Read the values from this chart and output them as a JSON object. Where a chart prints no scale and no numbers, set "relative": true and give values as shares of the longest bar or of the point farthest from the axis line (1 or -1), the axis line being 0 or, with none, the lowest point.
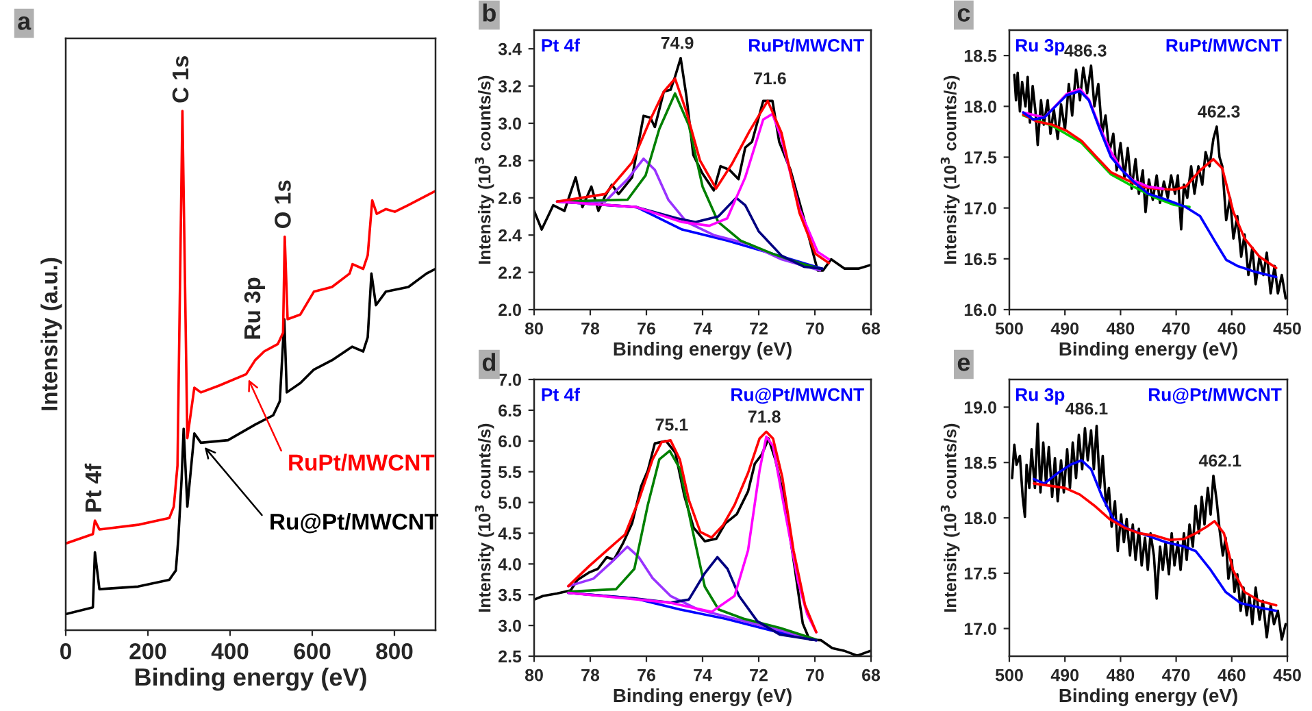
{
  "chart_data": [
    {
      "type": "line",
      "title": "a",
      "xlabel": "Binding energy (eV)",
      "ylabel": "Intensity (a.u.)",
      "relative": true,
      "xlim": [
        0,
        900
      ],
      "xticks": [
        0,
        200,
        400,
        600,
        800
      ],
      "grid": false,
      "annotations": [
        {
          "text": "C 1s",
          "x": 284,
          "y": 1.0
        },
        {
          "text": "O 1s",
          "x": 533,
          "y": 0.758
        },
        "Ru 3p",
        {
          "text": "Pt 4f",
          "x": 72,
          "y": 0.211
        }
      ],
      "series": [
        {
          "name": "Ru@Pt/MWCNT",
          "color": "#000000",
          "x": [
            0,
            66,
            71,
            82,
            176,
            252,
            268,
            274,
            282,
            287,
            296,
            313,
            329,
            395,
            461,
            505,
            521,
            532,
            538,
            571,
            604,
            648,
            697,
            724,
            735,
            744,
            755,
            779,
            834,
            878,
            900
          ],
          "values": [
            0.031,
            0.044,
            0.15,
            0.079,
            0.084,
            0.097,
            0.115,
            0.176,
            0.291,
            0.388,
            0.238,
            0.379,
            0.361,
            0.366,
            0.396,
            0.414,
            0.441,
            0.599,
            0.458,
            0.476,
            0.502,
            0.52,
            0.546,
            0.537,
            0.564,
            0.687,
            0.626,
            0.652,
            0.661,
            0.687,
            0.696
          ]
        },
        {
          "name": "RuPt/MWCNT",
          "color": "#ff0000",
          "x": [
            0,
            66,
            71,
            82,
            176,
            252,
            263,
            272,
            284,
            296,
            313,
            329,
            373,
            439,
            461,
            483,
            516,
            529,
            533,
            540,
            571,
            604,
            648,
            691,
            698,
            724,
            735,
            746,
            757,
            779,
            801,
            834,
            878,
            900
          ],
          "values": [
            0.167,
            0.185,
            0.211,
            0.194,
            0.203,
            0.216,
            0.238,
            0.317,
            1.0,
            0.37,
            0.467,
            0.458,
            0.471,
            0.493,
            0.52,
            0.537,
            0.551,
            0.573,
            0.758,
            0.599,
            0.608,
            0.652,
            0.661,
            0.687,
            0.705,
            0.696,
            0.722,
            0.828,
            0.802,
            0.811,
            0.806,
            0.819,
            0.837,
            0.846
          ]
        }
      ]
    },
    {
      "type": "line",
      "title": "b",
      "xlabel": "Binding energy (eV)",
      "ylabel": "Intensity (10$^{3}$ counts/s)",
      "xlim": [
        80,
        68
      ],
      "xticks": [
        80,
        78,
        76,
        74,
        72,
        70,
        68
      ],
      "ylim": [
        2.0,
        3.5
      ],
      "yticks": [
        {
          "value": 2.0,
          "label": "2.0"
        },
        2.2,
        2.4,
        2.6,
        2.8,
        {
          "value": 3.0,
          "label": "3.0"
        },
        3.2,
        3.4
      ],
      "grid": false,
      "annotations": [
        "Pt 4f",
        "RuPt/MWCNT",
        {
          "text": "74.9",
          "x": 74.9,
          "y": 3.35
        },
        {
          "text": "71.6",
          "x": 71.6,
          "y": 3.16
        }
      ],
      "series": [
        {
          "color": "#000000",
          "x": [
            80.0,
            79.73,
            79.32,
            78.92,
            78.52,
            78.28,
            77.96,
            77.71,
            77.47,
            77.23,
            76.99,
            76.51,
            76.1,
            75.86,
            75.7,
            75.38,
            75.14,
            74.98,
            74.78,
            74.57,
            74.33,
            74.0,
            73.6,
            73.36,
            73.04,
            72.72,
            72.48,
            72.24,
            71.84,
            71.51,
            71.27,
            70.87,
            70.39,
            69.9,
            69.71,
            69.42,
            68.94,
            68.45,
            68.0
          ],
          "values": [
            2.53,
            2.43,
            2.56,
            2.53,
            2.71,
            2.55,
            2.66,
            2.53,
            2.61,
            2.67,
            2.62,
            2.71,
            3.04,
            3.03,
            2.98,
            3.17,
            3.18,
            3.25,
            3.35,
            3.14,
            2.83,
            2.73,
            2.64,
            2.77,
            2.75,
            2.7,
            2.87,
            2.9,
            3.12,
            3.12,
            2.9,
            2.75,
            2.49,
            2.21,
            2.21,
            2.27,
            2.22,
            2.22,
            2.24
          ]
        },
        {
          "color": "#0000ff",
          "x": [
            79.18,
            76.35,
            74.73,
            73.12,
            71.51,
            69.74
          ],
          "values": [
            2.58,
            2.55,
            2.43,
            2.37,
            2.3,
            2.22
          ]
        },
        {
          "color": "#9933ff",
          "x": [
            79.18,
            77.47,
            76.67,
            76.1,
            75.7,
            75.22,
            74.57,
            73.6,
            72.32,
            71.19,
            69.82
          ],
          "values": [
            2.58,
            2.58,
            2.7,
            2.81,
            2.75,
            2.59,
            2.47,
            2.4,
            2.35,
            2.27,
            2.21
          ]
        },
        {
          "color": "#008000",
          "x": [
            79.18,
            76.67,
            76.03,
            75.54,
            74.98,
            74.49,
            74.0,
            73.44,
            72.64,
            71.51,
            70.55,
            69.82
          ],
          "values": [
            2.58,
            2.59,
            2.72,
            2.97,
            3.16,
            2.99,
            2.66,
            2.47,
            2.37,
            2.3,
            2.25,
            2.22
          ]
        },
        {
          "color": "#000080",
          "x": [
            79.18,
            76.35,
            74.9,
            74.25,
            73.44,
            72.8,
            72.48,
            72.0,
            71.19,
            70.39,
            69.74
          ],
          "values": [
            2.58,
            2.55,
            2.49,
            2.47,
            2.5,
            2.6,
            2.56,
            2.42,
            2.29,
            2.23,
            2.22
          ]
        },
        {
          "color": "#ff00ff",
          "x": [
            79.18,
            76.35,
            74.73,
            73.76,
            73.12,
            72.48,
            71.84,
            71.51,
            71.19,
            70.55,
            69.9,
            69.5
          ],
          "values": [
            2.58,
            2.55,
            2.47,
            2.45,
            2.49,
            2.71,
            3.02,
            3.05,
            2.92,
            2.54,
            2.31,
            2.27
          ]
        },
        {
          "color": "#ff0000",
          "x": [
            79.18,
            77.47,
            76.51,
            75.86,
            75.38,
            74.98,
            74.57,
            74.09,
            73.52,
            72.96,
            72.32,
            71.68,
            71.19,
            70.55,
            69.98,
            69.5
          ],
          "values": [
            2.58,
            2.62,
            2.79,
            3.02,
            3.17,
            3.24,
            3.06,
            2.8,
            2.65,
            2.78,
            2.96,
            3.12,
            2.95,
            2.52,
            2.3,
            2.25
          ]
        }
      ]
    },
    {
      "type": "line",
      "title": "c",
      "xlabel": "Binding energy (eV)",
      "ylabel": "Intensity (10$^{3}$ counts/s)",
      "xlim": [
        500,
        450
      ],
      "xticks": [
        500,
        490,
        480,
        470,
        460,
        450
      ],
      "ylim": [
        16.0,
        18.75
      ],
      "yticks": [
        {
          "value": 16.0,
          "label": "16.0"
        },
        16.5,
        {
          "value": 17.0,
          "label": "17.0"
        },
        17.5,
        {
          "value": 18.0,
          "label": "18.0"
        },
        18.5
      ],
      "grid": false,
      "annotations": [
        "Ru 3p",
        "RuPt/MWCNT",
        {
          "text": "486.3",
          "x": 486.3,
          "y": 18.4
        },
        {
          "text": "462.3",
          "x": 462.3,
          "y": 17.8
        }
      ],
      "series": [
        {
          "color": "#000000",
          "x": [
            499.1,
            498.8,
            498.5,
            498.1,
            497.7,
            497.1,
            496.7,
            496.3,
            495.8,
            495.3,
            494.9,
            494.3,
            493.8,
            493.1,
            492.6,
            492.0,
            491.3,
            490.7,
            490.0,
            489.3,
            488.7,
            488.0,
            487.3,
            486.7,
            486.0,
            485.3,
            484.7,
            484.0,
            483.3,
            482.7,
            482.0,
            481.3,
            480.7,
            480.0,
            479.3,
            478.7,
            478.0,
            477.3,
            476.7,
            476.0,
            475.5,
            474.9,
            474.2,
            473.5,
            472.9,
            472.2,
            471.5,
            470.9,
            470.2,
            469.7,
            469.1,
            468.6,
            468.0,
            467.3,
            466.7,
            466.0,
            465.3,
            464.7,
            464.0,
            463.3,
            462.7,
            462.2,
            461.7,
            461.0,
            460.3,
            459.7,
            459.0,
            458.3,
            457.7,
            457.0,
            456.3,
            455.7,
            455.0,
            454.3,
            453.7,
            453.0,
            452.3,
            451.7,
            451.0,
            450.3
          ],
          "values": [
            18.31,
            18.06,
            18.33,
            17.95,
            18.24,
            18.0,
            18.29,
            17.84,
            18.2,
            17.95,
            17.62,
            18.06,
            17.82,
            18.06,
            17.73,
            17.97,
            17.68,
            18.02,
            17.77,
            18.22,
            17.91,
            18.36,
            18.06,
            18.38,
            18.13,
            18.4,
            18.0,
            18.22,
            17.73,
            17.91,
            17.55,
            17.73,
            17.37,
            17.64,
            17.3,
            17.59,
            17.19,
            17.48,
            17.14,
            17.37,
            16.96,
            17.28,
            17.08,
            17.32,
            17.05,
            17.26,
            17.1,
            17.32,
            17.14,
            17.32,
            16.79,
            17.23,
            17.1,
            17.41,
            17.14,
            17.41,
            17.23,
            17.55,
            17.41,
            17.68,
            17.8,
            17.5,
            17.41,
            16.88,
            17.1,
            16.7,
            16.92,
            16.52,
            16.74,
            16.34,
            16.61,
            16.25,
            16.52,
            16.34,
            16.56,
            16.16,
            16.43,
            16.16,
            16.34,
            16.11
          ]
        },
        {
          "color": "#00cc00",
          "x": [
            497.5,
            492.3,
            487.0,
            481.7,
            477.7,
            473.7,
            470.3,
            467.6
          ],
          "values": [
            17.91,
            17.81,
            17.64,
            17.33,
            17.21,
            17.1,
            17.03,
            17.01
          ]
        },
        {
          "color": "#ff0000",
          "x": [
            497.5,
            495.0,
            492.3,
            489.7,
            487.0,
            484.3,
            481.7,
            479.0,
            476.3,
            473.7,
            470.3,
            468.3,
            465.7,
            463.3,
            461.7,
            459.7,
            457.7,
            455.0,
            452.0
          ],
          "values": [
            17.92,
            17.85,
            17.82,
            17.76,
            17.66,
            17.5,
            17.35,
            17.28,
            17.21,
            17.19,
            17.18,
            17.21,
            17.37,
            17.48,
            17.39,
            16.96,
            16.7,
            16.52,
            16.41
          ]
        },
        {
          "color": "#ff00ff",
          "x": [
            497.5,
            493.7,
            489.7,
            487.3,
            485.7,
            483.7,
            481.7,
            479.7,
            477.7,
            475.0,
            472.3
          ],
          "values": [
            17.94,
            17.89,
            18.12,
            18.17,
            18.07,
            17.79,
            17.55,
            17.37,
            17.27,
            17.21,
            17.19
          ]
        },
        {
          "color": "#0000ff",
          "x": [
            497.5,
            495.7,
            493.7,
            491.7,
            489.7,
            487.3,
            485.7,
            483.7,
            481.7,
            479.7,
            477.7,
            475.0,
            471.7,
            468.3,
            465.7,
            463.0,
            461.0,
            459.0,
            455.7,
            452.0
          ],
          "values": [
            17.94,
            17.87,
            17.89,
            18.0,
            18.11,
            18.15,
            18.06,
            17.77,
            17.5,
            17.37,
            17.26,
            17.14,
            17.08,
            17.01,
            16.92,
            16.67,
            16.49,
            16.43,
            16.37,
            16.32
          ]
        }
      ]
    },
    {
      "type": "line",
      "title": "d",
      "xlabel": "Binding energy (eV)",
      "ylabel": "Intensity (10$^{3}$ counts/s)",
      "xlim": [
        80,
        68
      ],
      "xticks": [
        80,
        78,
        76,
        74,
        72,
        70,
        68
      ],
      "ylim": [
        2.5,
        7.0
      ],
      "yticks": [
        2.5,
        {
          "value": 3.0,
          "label": "3.0"
        },
        3.5,
        {
          "value": 4.0,
          "label": "4.0"
        },
        4.5,
        {
          "value": 5.0,
          "label": "5.0"
        },
        5.5,
        {
          "value": 6.0,
          "label": "6.0"
        },
        6.5,
        {
          "value": 7.0,
          "label": "7.0"
        }
      ],
      "grid": false,
      "annotations": [
        "Pt 4f",
        "Ru@Pt/MWCNT",
        {
          "text": "75.1",
          "x": 75.1,
          "y": 6.02
        },
        {
          "text": "71.8",
          "x": 71.8,
          "y": 6.15
        }
      ],
      "series": [
        {
          "color": "#000000",
          "x": [
            80.0,
            79.68,
            79.19,
            78.7,
            78.46,
            78.05,
            77.73,
            77.41,
            77.16,
            76.84,
            76.51,
            76.19,
            75.95,
            75.7,
            75.3,
            74.97,
            74.65,
            74.32,
            73.92,
            73.51,
            73.19,
            72.78,
            72.38,
            72.14,
            71.89,
            71.65,
            71.41,
            71.08,
            70.76,
            70.43,
            70.19,
            69.78,
            69.38,
            68.97,
            68.49,
            68.0
          ],
          "values": [
            3.42,
            3.48,
            3.52,
            3.57,
            3.74,
            3.86,
            3.92,
            4.11,
            4.07,
            4.33,
            4.66,
            5.26,
            5.52,
            5.96,
            6.0,
            5.81,
            5.11,
            4.59,
            4.37,
            4.41,
            4.66,
            4.81,
            5.18,
            5.63,
            5.78,
            6.04,
            5.7,
            5.04,
            4.07,
            3.03,
            2.77,
            2.76,
            2.63,
            2.59,
            2.51,
            2.59
          ]
        },
        {
          "color": "#0000ff",
          "x": [
            78.78,
            76.43,
            74.81,
            73.19,
            71.57,
            69.95
          ],
          "values": [
            3.53,
            3.44,
            3.26,
            3.11,
            2.92,
            2.76
          ]
        },
        {
          "color": "#9933ff",
          "x": [
            78.78,
            77.89,
            77.24,
            76.68,
            76.27,
            75.78,
            75.14,
            74.16,
            72.86,
            71.24,
            69.95
          ],
          "values": [
            3.64,
            3.76,
            4.03,
            4.28,
            4.11,
            3.77,
            3.48,
            3.26,
            3.11,
            2.92,
            2.76
          ]
        },
        {
          "color": "#008000",
          "x": [
            78.78,
            77.08,
            76.43,
            75.95,
            75.54,
            75.17,
            74.81,
            74.41,
            73.92,
            73.43,
            72.54,
            71.24,
            69.95
          ],
          "values": [
            3.55,
            3.59,
            3.92,
            4.96,
            5.7,
            5.84,
            5.55,
            4.66,
            3.63,
            3.26,
            3.11,
            2.96,
            2.77
          ]
        },
        {
          "color": "#000080",
          "x": [
            78.78,
            76.43,
            75.14,
            74.49,
            73.92,
            73.47,
            73.11,
            72.7,
            72.05,
            71.24,
            69.95
          ],
          "values": [
            3.53,
            3.44,
            3.37,
            3.42,
            3.85,
            4.11,
            3.92,
            3.48,
            3.07,
            2.85,
            2.76
          ]
        },
        {
          "color": "#ff00ff",
          "x": [
            78.78,
            75.14,
            73.68,
            72.86,
            72.38,
            71.97,
            71.73,
            71.49,
            71.08,
            70.59,
            70.27,
            69.95
          ],
          "values": [
            3.53,
            3.37,
            3.22,
            3.48,
            4.22,
            5.52,
            6.07,
            5.92,
            4.89,
            3.7,
            3.18,
            2.89
          ]
        },
        {
          "color": "#ff0000",
          "x": [
            78.78,
            78.05,
            77.41,
            76.76,
            76.27,
            75.78,
            75.46,
            75.14,
            74.81,
            74.49,
            74.08,
            73.68,
            73.27,
            72.86,
            72.38,
            71.97,
            71.73,
            71.49,
            71.16,
            70.76,
            70.35,
            69.95
          ],
          "values": [
            3.64,
            3.96,
            4.22,
            4.48,
            5.04,
            5.7,
            5.98,
            6.01,
            5.7,
            5.04,
            4.52,
            4.43,
            4.63,
            4.96,
            5.48,
            6.04,
            6.15,
            6.04,
            5.41,
            4.22,
            3.33,
            2.89
          ]
        }
      ]
    },
    {
      "type": "line",
      "title": "e",
      "xlabel": "Binding energy (eV)",
      "ylabel": "Intensity (10$^{3}$ counts/s)",
      "xlim": [
        500,
        450
      ],
      "xticks": [
        500,
        490,
        480,
        470,
        460,
        450
      ],
      "ylim": [
        16.75,
        19.25
      ],
      "yticks": [
        {
          "value": 17.0,
          "label": "17.0"
        },
        17.5,
        {
          "value": 18.0,
          "label": "18.0"
        },
        18.5,
        {
          "value": 19.0,
          "label": "19.0"
        }
      ],
      "grid": false,
      "annotations": [
        "Ru 3p",
        "Ru@Pt/MWCNT",
        {
          "text": "486.1",
          "x": 486.1,
          "y": 18.85
        },
        {
          "text": "462.1",
          "x": 462.1,
          "y": 18.38
        }
      ],
      "series": [
        {
          "color": "#000000",
          "x": [
            499.5,
            499.1,
            498.7,
            498.1,
            497.6,
            497.2,
            496.9,
            496.4,
            496.0,
            495.4,
            494.9,
            494.4,
            493.9,
            493.4,
            492.9,
            492.3,
            491.8,
            491.3,
            490.7,
            490.2,
            489.6,
            489.1,
            488.6,
            488.0,
            487.5,
            486.9,
            486.4,
            485.9,
            485.3,
            484.8,
            484.3,
            483.7,
            483.2,
            482.6,
            482.1,
            481.6,
            481.0,
            480.5,
            479.9,
            479.4,
            478.9,
            478.3,
            477.8,
            477.3,
            476.7,
            476.2,
            475.6,
            475.1,
            474.6,
            474.0,
            473.5,
            472.9,
            472.4,
            471.9,
            471.3,
            470.8,
            470.3,
            469.7,
            469.2,
            468.6,
            468.1,
            467.6,
            467.0,
            466.5,
            465.9,
            465.4,
            464.9,
            464.3,
            463.8,
            463.3,
            462.7,
            462.2,
            461.6,
            461.1,
            460.6,
            460.0,
            459.5,
            459.0,
            458.4,
            457.9,
            457.3,
            456.8,
            456.3,
            455.7,
            455.0,
            454.4,
            453.7,
            453.0,
            452.4,
            451.7,
            451.0,
            450.3
          ],
          "values": [
            18.36,
            18.66,
            18.48,
            18.56,
            18.19,
            18.01,
            18.48,
            18.27,
            18.62,
            18.27,
            18.85,
            18.23,
            18.68,
            18.31,
            18.64,
            18.19,
            18.54,
            18.15,
            18.52,
            18.23,
            18.62,
            18.27,
            18.68,
            18.36,
            18.75,
            18.44,
            18.81,
            18.52,
            18.79,
            18.44,
            18.83,
            18.27,
            18.56,
            18.11,
            18.27,
            17.92,
            18.15,
            17.7,
            18.03,
            17.78,
            17.99,
            17.66,
            17.94,
            17.62,
            17.9,
            17.57,
            17.82,
            17.53,
            17.86,
            17.66,
            17.27,
            17.74,
            17.53,
            17.78,
            17.49,
            17.86,
            17.57,
            17.78,
            17.53,
            17.86,
            17.62,
            17.94,
            17.74,
            18.11,
            17.86,
            18.19,
            17.94,
            18.27,
            18.03,
            18.38,
            18.15,
            17.9,
            17.66,
            17.82,
            17.45,
            17.62,
            17.33,
            17.49,
            17.16,
            17.37,
            17.12,
            17.29,
            17.04,
            17.37,
            17.08,
            17.25,
            16.92,
            17.21,
            17.04,
            17.16,
            16.9,
            17.04
          ]
        },
        {
          "color": "#0000ff",
          "x": [
            495.6,
            493.7,
            491.4,
            489.0,
            487.0,
            485.3,
            483.3,
            481.3,
            478.6,
            475.2,
            471.9,
            468.5,
            466.5,
            463.8,
            461.1,
            458.4,
            455.0,
            452.0
          ],
          "values": [
            18.35,
            18.31,
            18.4,
            18.48,
            18.52,
            18.44,
            18.19,
            17.99,
            17.9,
            17.84,
            17.78,
            17.74,
            17.7,
            17.53,
            17.33,
            17.23,
            17.19,
            17.16
          ]
        },
        {
          "color": "#ff0000",
          "x": [
            495.6,
            492.7,
            490.0,
            487.3,
            484.7,
            482.0,
            479.3,
            476.6,
            473.9,
            471.2,
            468.5,
            466.5,
            464.5,
            463.1,
            461.4,
            459.8,
            457.7,
            455.0,
            452.0
          ],
          "values": [
            18.31,
            18.29,
            18.27,
            18.21,
            18.11,
            17.99,
            17.91,
            17.86,
            17.84,
            17.8,
            17.81,
            17.86,
            17.92,
            17.97,
            17.86,
            17.53,
            17.33,
            17.25,
            17.21
          ]
        }
      ]
    }
  ]
}
